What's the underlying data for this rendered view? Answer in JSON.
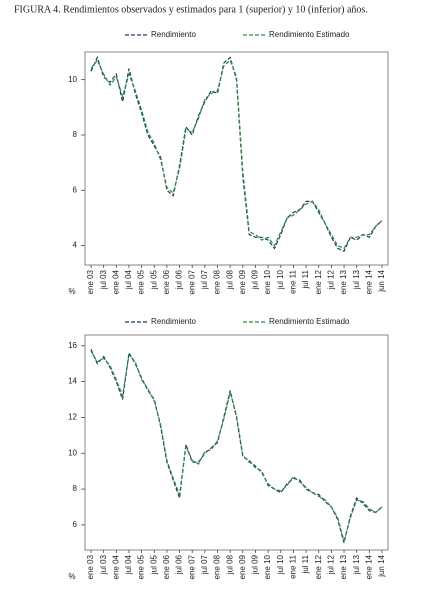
{
  "caption": "FIGURA 4.  Rendimientos observados y estimados para 1 (superior) y 10 (inferior) años.",
  "chart_data": [
    {
      "type": "line",
      "ylabel": "%",
      "categories": [
        "ene 03",
        null,
        "jul 03",
        null,
        "ene 04",
        null,
        "jul 04",
        null,
        "ene 05",
        null,
        "jul 05",
        null,
        "ene 06",
        null,
        "jul 06",
        null,
        "ene 07",
        null,
        "jul 07",
        null,
        "ene 08",
        null,
        "jul 08",
        null,
        "ene 09",
        null,
        "jul 09",
        null,
        "ene 10",
        null,
        "jul 10",
        null,
        "ene 11",
        null,
        "jul 11",
        null,
        "ene 12",
        null,
        "jul 12",
        null,
        "ene 13",
        null,
        "jul 13",
        null,
        "ene 14",
        null,
        "jun 14"
      ],
      "series": [
        {
          "name": "Rendimiento",
          "color": "#1f3a6e",
          "values": [
            10.3,
            10.8,
            10.1,
            9.9,
            10.2,
            9.2,
            10.4,
            9.5,
            8.8,
            8.0,
            7.6,
            7.2,
            6.0,
            5.8,
            6.9,
            8.3,
            8.0,
            8.7,
            9.2,
            9.6,
            9.5,
            10.6,
            10.8,
            10.0,
            6.5,
            4.4,
            4.3,
            4.3,
            4.2,
            3.9,
            4.4,
            5.0,
            5.2,
            5.3,
            5.6,
            5.6,
            5.2,
            4.8,
            4.3,
            3.9,
            3.8,
            4.3,
            4.2,
            4.4,
            4.3,
            4.7,
            4.9
          ]
        },
        {
          "name": "Rendimiento Estimado",
          "color": "#2e8b3a",
          "values": [
            10.4,
            10.7,
            10.2,
            9.8,
            10.1,
            9.4,
            10.2,
            9.6,
            8.9,
            8.1,
            7.7,
            7.1,
            6.1,
            5.9,
            6.8,
            8.2,
            8.1,
            8.6,
            9.3,
            9.5,
            9.6,
            10.5,
            10.7,
            10.1,
            6.7,
            4.5,
            4.4,
            4.2,
            4.3,
            4.0,
            4.5,
            5.0,
            5.1,
            5.3,
            5.5,
            5.6,
            5.3,
            4.8,
            4.4,
            4.0,
            3.9,
            4.3,
            4.3,
            4.4,
            4.4,
            4.7,
            4.9
          ]
        }
      ],
      "ylim": [
        3.3,
        11
      ],
      "yticks": [
        4,
        6,
        8,
        10
      ]
    },
    {
      "type": "line",
      "ylabel": "%",
      "categories": [
        "ene 03",
        null,
        "jul 03",
        null,
        "ene 04",
        null,
        "jul 04",
        null,
        "ene 05",
        null,
        "jul 05",
        null,
        "ene 06",
        null,
        "jul 06",
        null,
        "ene 07",
        null,
        "jul 07",
        null,
        "ene 08",
        null,
        "jul 08",
        null,
        "ene 09",
        null,
        "jul 09",
        null,
        "ene 10",
        null,
        "jul 10",
        null,
        "ene 11",
        null,
        "jul 11",
        null,
        "ene 12",
        null,
        "jul 12",
        null,
        "ene 13",
        null,
        "jul 13",
        null,
        "ene 14",
        null,
        "jun 14"
      ],
      "series": [
        {
          "name": "Rendimiento",
          "color": "#1f3a6e",
          "values": [
            15.8,
            15.0,
            15.4,
            14.8,
            14.0,
            13.0,
            15.6,
            15.0,
            14.2,
            13.5,
            13.0,
            11.5,
            9.5,
            8.5,
            7.5,
            10.5,
            9.5,
            9.5,
            10.0,
            10.3,
            10.6,
            12.0,
            13.5,
            12.0,
            9.8,
            9.6,
            9.2,
            9.0,
            8.2,
            8.0,
            7.8,
            8.3,
            8.6,
            8.5,
            8.0,
            7.8,
            7.7,
            7.3,
            7.0,
            6.3,
            5.0,
            6.5,
            7.5,
            7.2,
            6.8,
            6.7,
            7.0
          ]
        },
        {
          "name": "Rendimiento Estimado",
          "color": "#2e8b3a",
          "values": [
            15.7,
            15.1,
            15.3,
            14.9,
            14.1,
            13.2,
            15.5,
            15.1,
            14.1,
            13.6,
            12.9,
            11.6,
            9.6,
            8.6,
            7.7,
            10.4,
            9.6,
            9.4,
            10.1,
            10.2,
            10.7,
            11.9,
            13.4,
            12.1,
            9.9,
            9.5,
            9.3,
            8.9,
            8.3,
            8.0,
            7.9,
            8.2,
            8.7,
            8.4,
            8.1,
            7.8,
            7.6,
            7.4,
            7.0,
            6.4,
            5.1,
            6.4,
            7.4,
            7.3,
            6.9,
            6.7,
            7.0
          ]
        }
      ],
      "ylim": [
        4.6,
        16.6
      ],
      "yticks": [
        6,
        8,
        10,
        12,
        14,
        16
      ]
    }
  ]
}
